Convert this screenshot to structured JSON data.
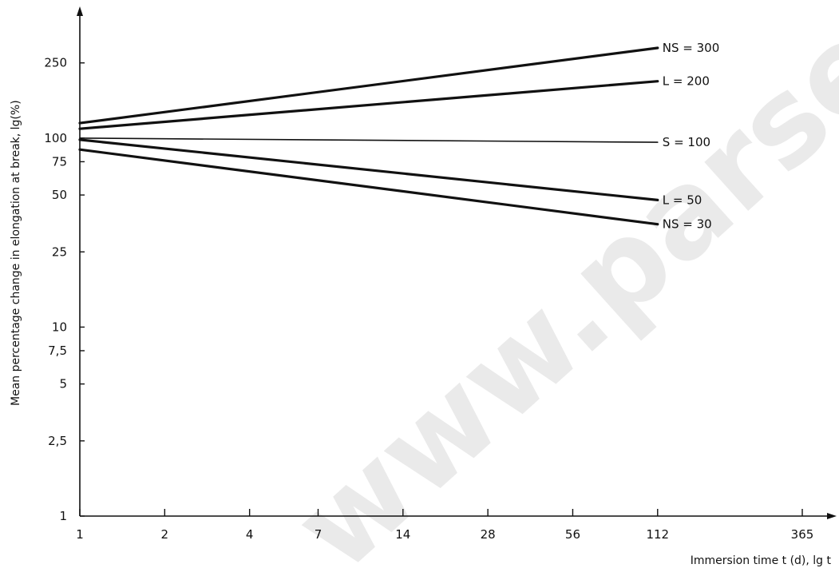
{
  "chart_data": {
    "type": "line",
    "xlabel": "Immersion time t (d), lg t",
    "ylabel": "Mean percentage change in elongation at break, lg(%)",
    "x_scale": "log",
    "y_scale": "log",
    "xlim": [
      1,
      365
    ],
    "ylim": [
      1,
      300
    ],
    "x_ticks": [
      {
        "value": 1,
        "label": "1"
      },
      {
        "value": 2,
        "label": "2"
      },
      {
        "value": 4,
        "label": "4"
      },
      {
        "value": 7,
        "label": "7"
      },
      {
        "value": 14,
        "label": "14"
      },
      {
        "value": 28,
        "label": "28"
      },
      {
        "value": 56,
        "label": "56"
      },
      {
        "value": 112,
        "label": "112"
      },
      {
        "value": 365,
        "label": "365"
      }
    ],
    "y_ticks": [
      {
        "value": 1,
        "label": "1"
      },
      {
        "value": 2.5,
        "label": "2,5"
      },
      {
        "value": 5,
        "label": "5"
      },
      {
        "value": 7.5,
        "label": "7,5"
      },
      {
        "value": 10,
        "label": "10"
      },
      {
        "value": 25,
        "label": "25"
      },
      {
        "value": 50,
        "label": "50"
      },
      {
        "value": 75,
        "label": "75"
      },
      {
        "value": 100,
        "label": "100"
      },
      {
        "value": 250,
        "label": "250"
      }
    ],
    "grid": false,
    "series": [
      {
        "name": "NS = 300",
        "x": [
          1,
          112
        ],
        "y": [
          120,
          300
        ],
        "weight": "thick"
      },
      {
        "name": "L = 200",
        "x": [
          1,
          112
        ],
        "y": [
          112,
          200
        ],
        "weight": "thick"
      },
      {
        "name": "S = 100",
        "x": [
          1,
          112
        ],
        "y": [
          100,
          95
        ],
        "weight": "thin"
      },
      {
        "name": "L = 50",
        "x": [
          1,
          112
        ],
        "y": [
          98,
          47
        ],
        "weight": "thick"
      },
      {
        "name": "NS = 30",
        "x": [
          1,
          112
        ],
        "y": [
          87,
          35
        ],
        "weight": "thick"
      }
    ],
    "watermark": "www.parsethylene"
  }
}
